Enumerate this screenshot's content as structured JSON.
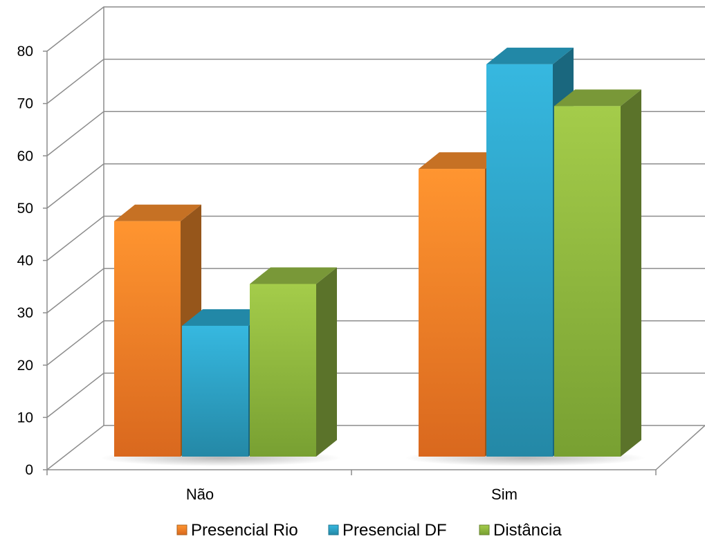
{
  "chart_data": {
    "type": "bar",
    "categories": [
      "Não",
      "Sim"
    ],
    "series": [
      {
        "name": "Presencial Rio",
        "values": [
          45,
          55
        ],
        "color": "#F28A2C"
      },
      {
        "name": "Presencial DF",
        "values": [
          25,
          75
        ],
        "color": "#2AA6CC"
      },
      {
        "name": "Distância",
        "values": [
          33,
          67
        ],
        "color": "#93B944"
      }
    ],
    "ylim": [
      0,
      80
    ],
    "yticks": [
      0,
      10,
      20,
      30,
      40,
      50,
      60,
      70,
      80
    ],
    "grid": true,
    "legend_position": "bottom",
    "style": "3d-clustered-column"
  }
}
